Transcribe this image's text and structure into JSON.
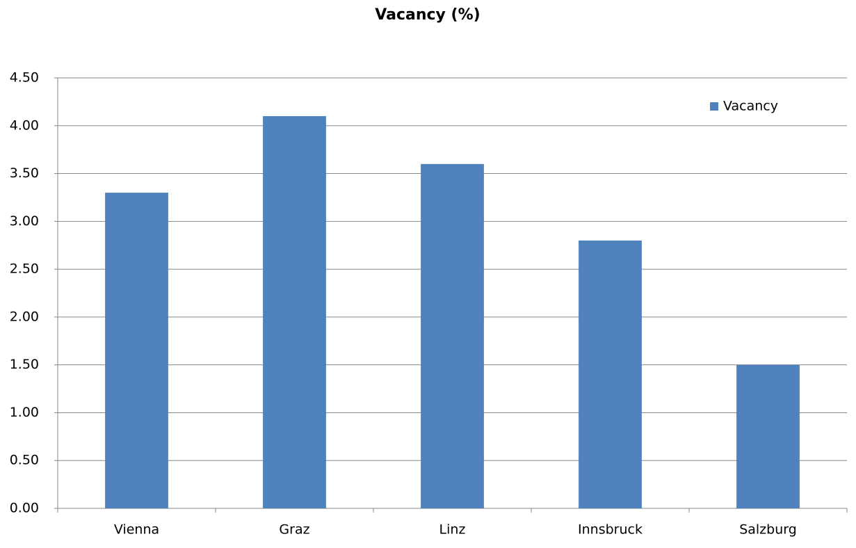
{
  "chart_data": {
    "type": "bar",
    "title": "Vacancy (%)",
    "categories": [
      "Vienna",
      "Graz",
      "Linz",
      "Innsbruck",
      "Salzburg"
    ],
    "series": [
      {
        "name": "Vacancy",
        "color": "#4f81bd",
        "values": [
          3.3,
          4.1,
          3.6,
          2.8,
          1.5
        ]
      }
    ],
    "ylim": [
      0,
      4.5
    ],
    "yticks": [
      {
        "value": 0,
        "label": "0.00"
      },
      {
        "value": 0.5,
        "label": "0.50"
      },
      {
        "value": 1,
        "label": "1.00"
      },
      {
        "value": 1.5,
        "label": "1.50"
      },
      {
        "value": 2,
        "label": "2.00"
      },
      {
        "value": 2.5,
        "label": "2.50"
      },
      {
        "value": 3,
        "label": "3.00"
      },
      {
        "value": 3.5,
        "label": "3.50"
      },
      {
        "value": 4,
        "label": "4.00"
      },
      {
        "value": 4.5,
        "label": "4.50"
      }
    ],
    "grid": true,
    "legend": "upper right"
  }
}
